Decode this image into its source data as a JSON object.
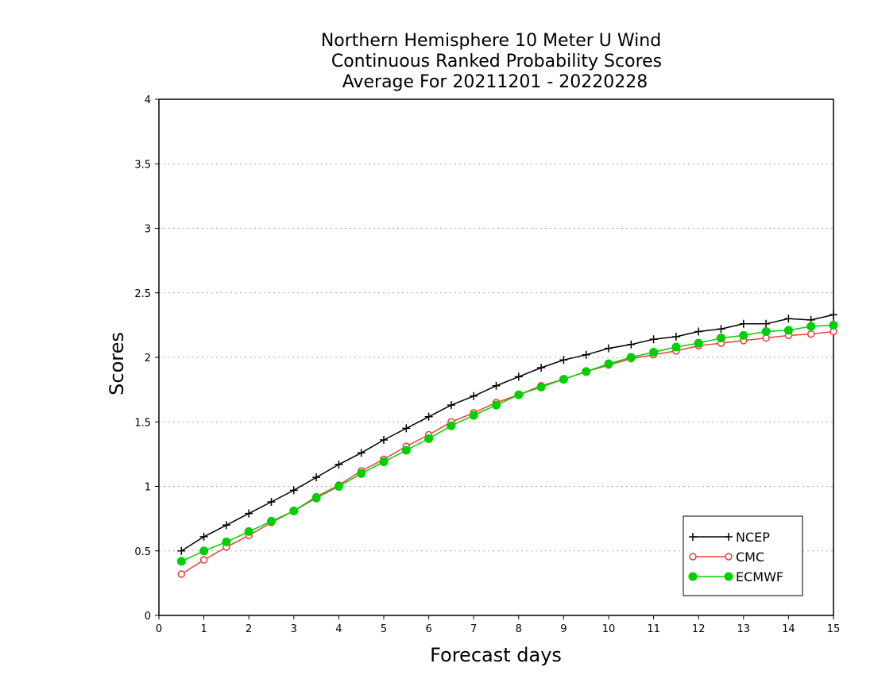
{
  "chart_data": {
    "type": "line",
    "title": [
      "Northern Hemisphere 10 Meter U Wind",
      "Continuous Ranked Probability Scores",
      "Average For 20211201 - 20220228"
    ],
    "xlabel": "Forecast days",
    "ylabel": "Scores",
    "xlim": [
      0,
      15
    ],
    "ylim": [
      0,
      4
    ],
    "xticks": [
      "0",
      "1",
      "2",
      "3",
      "4",
      "5",
      "6",
      "7",
      "8",
      "9",
      "10",
      "11",
      "12",
      "13",
      "14",
      "15"
    ],
    "yticks": [
      "0",
      "0.5",
      "1",
      "1.5",
      "2",
      "2.5",
      "3",
      "3.5",
      "4"
    ],
    "grid": "horizontal dotted",
    "legend_position": "bottom-right",
    "x": [
      0.5,
      1.0,
      1.5,
      2.0,
      2.5,
      3.0,
      3.5,
      4.0,
      4.5,
      5.0,
      5.5,
      6.0,
      6.5,
      7.0,
      7.5,
      8.0,
      8.5,
      9.0,
      9.5,
      10.0,
      10.5,
      11.0,
      11.5,
      12.0,
      12.5,
      13.0,
      13.5,
      14.0,
      14.5,
      15.0
    ],
    "series": [
      {
        "name": "NCEP",
        "color": "#000000",
        "marker": "plus",
        "values": [
          0.5,
          0.61,
          0.7,
          0.79,
          0.88,
          0.97,
          1.07,
          1.17,
          1.26,
          1.36,
          1.45,
          1.54,
          1.63,
          1.7,
          1.78,
          1.85,
          1.92,
          1.98,
          2.02,
          2.07,
          2.1,
          2.14,
          2.16,
          2.2,
          2.22,
          2.26,
          2.26,
          2.3,
          2.29,
          2.33
        ]
      },
      {
        "name": "CMC",
        "color": "#e8403a",
        "marker": "open-circle",
        "values": [
          0.32,
          0.43,
          0.53,
          0.62,
          0.72,
          0.81,
          0.92,
          1.01,
          1.12,
          1.21,
          1.31,
          1.4,
          1.5,
          1.57,
          1.65,
          1.71,
          1.78,
          1.83,
          1.89,
          1.94,
          1.99,
          2.02,
          2.05,
          2.09,
          2.11,
          2.13,
          2.15,
          2.17,
          2.18,
          2.2
        ]
      },
      {
        "name": "ECMWF",
        "color": "#00d000",
        "marker": "filled-circle",
        "values": [
          0.42,
          0.5,
          0.57,
          0.65,
          0.73,
          0.81,
          0.91,
          1.0,
          1.1,
          1.19,
          1.28,
          1.37,
          1.47,
          1.55,
          1.63,
          1.71,
          1.77,
          1.83,
          1.89,
          1.95,
          2.0,
          2.04,
          2.08,
          2.11,
          2.15,
          2.17,
          2.2,
          2.21,
          2.24,
          2.25
        ]
      }
    ]
  }
}
